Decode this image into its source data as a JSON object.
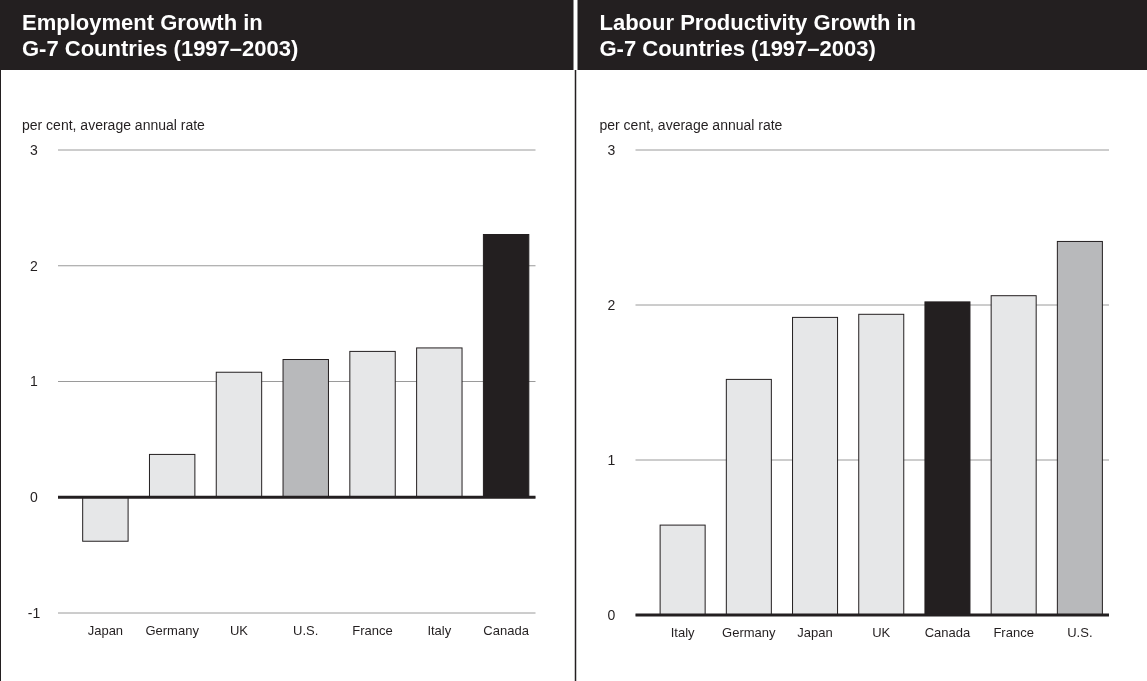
{
  "chart_data": [
    {
      "type": "bar",
      "title": "Employment Growth in\nG-7 Countries (1997–2003)",
      "ylabel": "per cent, average annual rate",
      "categories": [
        "Japan",
        "Germany",
        "UK",
        "U.S.",
        "France",
        "Italy",
        "Canada"
      ],
      "values": [
        -0.38,
        0.37,
        1.08,
        1.19,
        1.26,
        1.29,
        2.27
      ],
      "colors": [
        "#e6e7e8",
        "#e6e7e8",
        "#e6e7e8",
        "#b8b9bb",
        "#e6e7e8",
        "#e6e7e8",
        "#231f20"
      ],
      "ylim": [
        -1,
        3
      ],
      "yticks": [
        -1,
        0,
        1,
        2,
        3
      ],
      "grid": "y"
    },
    {
      "type": "bar",
      "title": "Labour Productivity Growth in\nG-7 Countries (1997–2003)",
      "ylabel": "per cent, average annual rate",
      "categories": [
        "Italy",
        "Germany",
        "Japan",
        "UK",
        "Canada",
        "France",
        "U.S."
      ],
      "values": [
        0.58,
        1.52,
        1.92,
        1.94,
        2.02,
        2.06,
        2.41
      ],
      "colors": [
        "#e6e7e8",
        "#e6e7e8",
        "#e6e7e8",
        "#e6e7e8",
        "#231f20",
        "#e6e7e8",
        "#b8b9bb"
      ],
      "ylim": [
        0,
        3
      ],
      "yticks": [
        0,
        1,
        2,
        3
      ],
      "grid": "y"
    }
  ]
}
